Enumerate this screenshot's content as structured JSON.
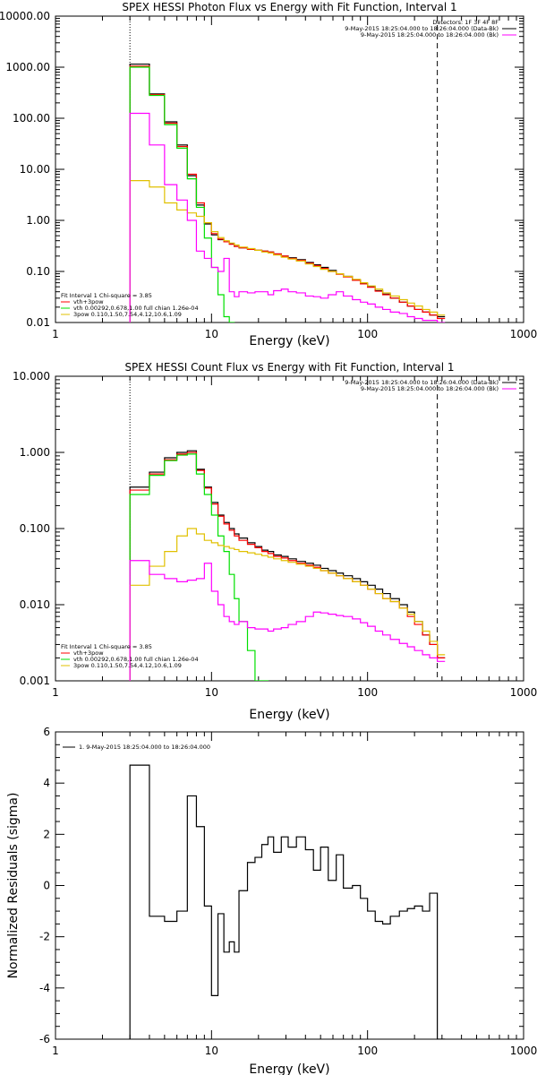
{
  "colors": {
    "data": "#000000",
    "total_fit": "#ff0000",
    "vth": "#00e000",
    "powerlaw": "#e0c000",
    "background": "#ff00ff"
  },
  "chart_data": [
    {
      "type": "line",
      "title": "SPEX HESSI Photon Flux vs Energy with Fit Function, Interval 1",
      "xlabel": "Energy (keV)",
      "ylabel": "",
      "xscale": "log",
      "yscale": "log",
      "xlim": [
        1,
        1000
      ],
      "ylim": [
        0.01,
        10000
      ],
      "xticks": [
        "1",
        "10",
        "100",
        "1000"
      ],
      "yticks": [
        "0.01",
        "0.10",
        "1.00",
        "10.00",
        "100.00",
        "1000.00",
        "10000.00"
      ],
      "vlines": [
        {
          "x": 3,
          "style": "dotted"
        },
        {
          "x": 280,
          "style": "dashed"
        }
      ],
      "legend_tr": [
        "Detectors: 1F 3F 4F 8F",
        "9-May-2015 18:25:04.000 to 18:26:04.000 (Data-Bk)",
        "9-May-2015 18:25:04.000 to 18:26:04.000 (Bk)"
      ],
      "legend_bl": [
        "Fit Interval  1    Chi-square = 3.85",
        "vth+3pow",
        "vth 0.00292,0.678,1.00  full chian 1.26e-04",
        "3pow 0.110,1.50,7.54,4.12,10.6,1.09"
      ],
      "series": [
        {
          "name": "Data-Bk",
          "color": "#000000",
          "x": [
            3,
            4,
            5,
            6,
            7,
            8,
            9,
            10,
            11,
            12,
            13,
            14,
            15,
            17,
            19,
            21,
            23,
            25,
            28,
            31,
            35,
            40,
            45,
            50,
            56,
            63,
            70,
            80,
            90,
            100,
            112,
            125,
            140,
            160,
            180,
            200,
            225,
            250,
            280
          ],
          "y": [
            1150,
            300,
            85,
            30,
            7.5,
            2.0,
            0.85,
            0.52,
            0.42,
            0.38,
            0.35,
            0.31,
            0.29,
            0.27,
            0.26,
            0.25,
            0.24,
            0.22,
            0.2,
            0.185,
            0.17,
            0.15,
            0.135,
            0.12,
            0.105,
            0.09,
            0.08,
            0.068,
            0.058,
            0.05,
            0.042,
            0.036,
            0.03,
            0.025,
            0.021,
            0.018,
            0.016,
            0.014,
            0.013
          ]
        },
        {
          "name": "vth+3pow",
          "color": "#ff0000",
          "x": [
            3,
            4,
            5,
            6,
            7,
            8,
            9,
            10,
            11,
            12,
            13,
            14,
            15,
            17,
            19,
            21,
            23,
            25,
            28,
            31,
            35,
            40,
            45,
            50,
            56,
            63,
            70,
            80,
            90,
            100,
            112,
            125,
            140,
            160,
            180,
            200,
            225,
            250,
            280
          ],
          "y": [
            1050,
            290,
            80,
            28,
            8,
            2.2,
            0.9,
            0.55,
            0.43,
            0.38,
            0.34,
            0.31,
            0.29,
            0.27,
            0.26,
            0.25,
            0.24,
            0.22,
            0.2,
            0.18,
            0.165,
            0.145,
            0.13,
            0.115,
            0.1,
            0.088,
            0.078,
            0.067,
            0.057,
            0.049,
            0.041,
            0.035,
            0.03,
            0.025,
            0.021,
            0.018,
            0.016,
            0.014,
            0.012
          ]
        },
        {
          "name": "vth",
          "color": "#00e000",
          "x": [
            3,
            4,
            5,
            6,
            7,
            8,
            9,
            10,
            11,
            12,
            13
          ],
          "y": [
            1000,
            280,
            75,
            26,
            6.5,
            1.8,
            0.45,
            0.12,
            0.035,
            0.013,
            0.01
          ]
        },
        {
          "name": "3pow",
          "color": "#e0c000",
          "x": [
            3,
            4,
            5,
            6,
            7,
            8,
            9,
            10,
            11,
            12,
            13,
            14,
            15,
            17,
            19,
            21,
            23,
            25,
            28,
            31,
            35,
            40,
            45,
            50,
            56,
            63,
            70,
            80,
            90,
            100,
            112,
            125,
            140,
            160,
            180,
            200,
            225,
            250,
            280
          ],
          "y": [
            6.0,
            4.5,
            2.2,
            1.6,
            1.4,
            1.2,
            0.9,
            0.6,
            0.46,
            0.4,
            0.36,
            0.33,
            0.3,
            0.28,
            0.26,
            0.24,
            0.23,
            0.21,
            0.19,
            0.175,
            0.16,
            0.14,
            0.125,
            0.11,
            0.1,
            0.09,
            0.08,
            0.07,
            0.06,
            0.052,
            0.045,
            0.038,
            0.033,
            0.028,
            0.024,
            0.021,
            0.018,
            0.016,
            0.014
          ]
        },
        {
          "name": "Bk",
          "color": "#ff00ff",
          "x": [
            3,
            4,
            5,
            6,
            7,
            8,
            9,
            10,
            11,
            12,
            13,
            14,
            15,
            17,
            19,
            21,
            23,
            25,
            28,
            31,
            35,
            40,
            45,
            50,
            56,
            63,
            70,
            80,
            90,
            100,
            112,
            125,
            140,
            160,
            180,
            200,
            225,
            250,
            280
          ],
          "y": [
            125,
            30,
            5,
            2.5,
            1.0,
            0.25,
            0.18,
            0.12,
            0.1,
            0.18,
            0.04,
            0.032,
            0.04,
            0.038,
            0.04,
            0.04,
            0.035,
            0.042,
            0.045,
            0.04,
            0.038,
            0.033,
            0.032,
            0.03,
            0.035,
            0.04,
            0.033,
            0.028,
            0.025,
            0.023,
            0.02,
            0.018,
            0.016,
            0.015,
            0.013,
            0.012,
            0.011,
            0.011,
            0.01
          ]
        }
      ]
    },
    {
      "type": "line",
      "title": "SPEX HESSI Count Flux vs Energy with Fit Function, Interval 1",
      "xlabel": "Energy (keV)",
      "ylabel": "",
      "xscale": "log",
      "yscale": "log",
      "xlim": [
        1,
        1000
      ],
      "ylim": [
        0.001,
        10
      ],
      "xticks": [
        "1",
        "10",
        "100",
        "1000"
      ],
      "yticks": [
        "0.001",
        "0.010",
        "0.100",
        "1.000",
        "10.000"
      ],
      "vlines": [
        {
          "x": 3,
          "style": "dotted"
        },
        {
          "x": 280,
          "style": "dashed"
        }
      ],
      "legend_tr": [
        "9-May-2015 18:25:04.000 to 18:26:04.000 (Data-Bk)",
        "9-May-2015 18:25:04.000 to 18:26:04.000 (Bk)"
      ],
      "legend_bl": [
        "Fit Interval  1    Chi-square = 3.85",
        "vth+3pow",
        "vth 0.00292,0.678,1.00  full chian 1.26e-04",
        "3pow 0.110,1.50,7.54,4.12,10.6,1.09"
      ],
      "series": [
        {
          "name": "Data-Bk",
          "color": "#000000",
          "x": [
            3,
            4,
            5,
            6,
            7,
            8,
            9,
            10,
            11,
            12,
            13,
            14,
            15,
            17,
            19,
            21,
            23,
            25,
            28,
            31,
            35,
            40,
            45,
            50,
            56,
            63,
            70,
            80,
            90,
            100,
            112,
            125,
            140,
            160,
            180,
            200,
            225,
            250,
            280
          ],
          "y": [
            0.35,
            0.55,
            0.85,
            1.0,
            1.05,
            0.6,
            0.35,
            0.22,
            0.15,
            0.12,
            0.1,
            0.085,
            0.075,
            0.065,
            0.058,
            0.052,
            0.05,
            0.045,
            0.043,
            0.04,
            0.037,
            0.035,
            0.033,
            0.03,
            0.028,
            0.026,
            0.024,
            0.022,
            0.02,
            0.018,
            0.016,
            0.014,
            0.012,
            0.01,
            0.008,
            0.006,
            0.004,
            0.003,
            0.002
          ]
        },
        {
          "name": "vth+3pow",
          "color": "#ff0000",
          "x": [
            3,
            4,
            5,
            6,
            7,
            8,
            9,
            10,
            11,
            12,
            13,
            14,
            15,
            17,
            19,
            21,
            23,
            25,
            28,
            31,
            35,
            40,
            45,
            50,
            56,
            63,
            70,
            80,
            90,
            100,
            112,
            125,
            140,
            160,
            180,
            200,
            225,
            250,
            280
          ],
          "y": [
            0.32,
            0.52,
            0.8,
            0.95,
            1.0,
            0.58,
            0.34,
            0.21,
            0.145,
            0.115,
            0.095,
            0.08,
            0.07,
            0.062,
            0.056,
            0.05,
            0.047,
            0.043,
            0.041,
            0.038,
            0.035,
            0.033,
            0.031,
            0.028,
            0.026,
            0.024,
            0.022,
            0.02,
            0.018,
            0.016,
            0.014,
            0.012,
            0.011,
            0.009,
            0.007,
            0.0055,
            0.004,
            0.003,
            0.002
          ]
        },
        {
          "name": "vth",
          "color": "#00e000",
          "x": [
            3,
            4,
            5,
            6,
            7,
            8,
            9,
            10,
            11,
            12,
            13,
            14,
            15,
            17,
            19,
            21
          ],
          "y": [
            0.28,
            0.5,
            0.78,
            0.92,
            0.95,
            0.52,
            0.28,
            0.15,
            0.08,
            0.05,
            0.025,
            0.012,
            0.006,
            0.0025,
            0.001,
            0.001
          ]
        },
        {
          "name": "3pow",
          "color": "#e0c000",
          "x": [
            3,
            4,
            5,
            6,
            7,
            8,
            9,
            10,
            11,
            12,
            13,
            14,
            15,
            17,
            19,
            21,
            23,
            25,
            28,
            31,
            35,
            40,
            45,
            50,
            56,
            63,
            70,
            80,
            90,
            100,
            112,
            125,
            140,
            160,
            180,
            200,
            225,
            250,
            280
          ],
          "y": [
            0.018,
            0.032,
            0.05,
            0.08,
            0.1,
            0.085,
            0.07,
            0.065,
            0.06,
            0.058,
            0.055,
            0.053,
            0.05,
            0.048,
            0.046,
            0.044,
            0.042,
            0.04,
            0.038,
            0.036,
            0.034,
            0.032,
            0.03,
            0.028,
            0.026,
            0.024,
            0.022,
            0.02,
            0.018,
            0.016,
            0.014,
            0.012,
            0.011,
            0.009,
            0.0075,
            0.006,
            0.0045,
            0.0033,
            0.0022
          ]
        },
        {
          "name": "Bk",
          "color": "#ff00ff",
          "x": [
            3,
            4,
            5,
            6,
            7,
            8,
            9,
            10,
            11,
            12,
            13,
            14,
            15,
            17,
            19,
            21,
            23,
            25,
            28,
            31,
            35,
            40,
            45,
            50,
            56,
            63,
            70,
            80,
            90,
            100,
            112,
            125,
            140,
            160,
            180,
            200,
            225,
            250,
            280
          ],
          "y": [
            0.038,
            0.025,
            0.022,
            0.02,
            0.021,
            0.022,
            0.035,
            0.015,
            0.01,
            0.007,
            0.006,
            0.0055,
            0.006,
            0.005,
            0.0048,
            0.0048,
            0.0045,
            0.0048,
            0.005,
            0.0055,
            0.006,
            0.007,
            0.008,
            0.0078,
            0.0075,
            0.0072,
            0.007,
            0.0065,
            0.0058,
            0.0052,
            0.0045,
            0.004,
            0.0035,
            0.0031,
            0.0028,
            0.0025,
            0.0022,
            0.002,
            0.0018
          ]
        }
      ]
    },
    {
      "type": "line",
      "title": "",
      "xlabel": "Energy (keV)",
      "ylabel": "Normalized Residuals (sigma)",
      "xscale": "log",
      "yscale": "linear",
      "xlim": [
        1,
        1000
      ],
      "ylim": [
        -6,
        6
      ],
      "xticks": [
        "1",
        "10",
        "100",
        "1000"
      ],
      "yticks": [
        "-6",
        "-4",
        "-2",
        "0",
        "2",
        "4",
        "6"
      ],
      "legend_tl": [
        "1.  9-May-2015 18:25:04.000 to 18:26:04.000"
      ],
      "series": [
        {
          "name": "residuals",
          "color": "#000000",
          "x": [
            3,
            4,
            5,
            6,
            7,
            8,
            9,
            10,
            11,
            12,
            13,
            14,
            15,
            17,
            19,
            21,
            23,
            25,
            28,
            31,
            35,
            40,
            45,
            50,
            56,
            63,
            70,
            80,
            90,
            100,
            112,
            125,
            140,
            160,
            180,
            200,
            225,
            250,
            280
          ],
          "y": [
            4.7,
            -1.2,
            -1.4,
            -1.0,
            3.5,
            2.3,
            -0.8,
            -4.3,
            -1.1,
            -2.6,
            -2.2,
            -2.6,
            -0.2,
            0.9,
            1.1,
            1.6,
            1.9,
            1.3,
            1.9,
            1.5,
            1.9,
            1.4,
            0.6,
            1.5,
            0.2,
            1.2,
            -0.1,
            0.0,
            -0.5,
            -1.0,
            -1.4,
            -1.5,
            -1.2,
            -1.0,
            -0.9,
            -0.8,
            -1.0,
            -0.3,
            -6.0
          ]
        }
      ]
    }
  ]
}
